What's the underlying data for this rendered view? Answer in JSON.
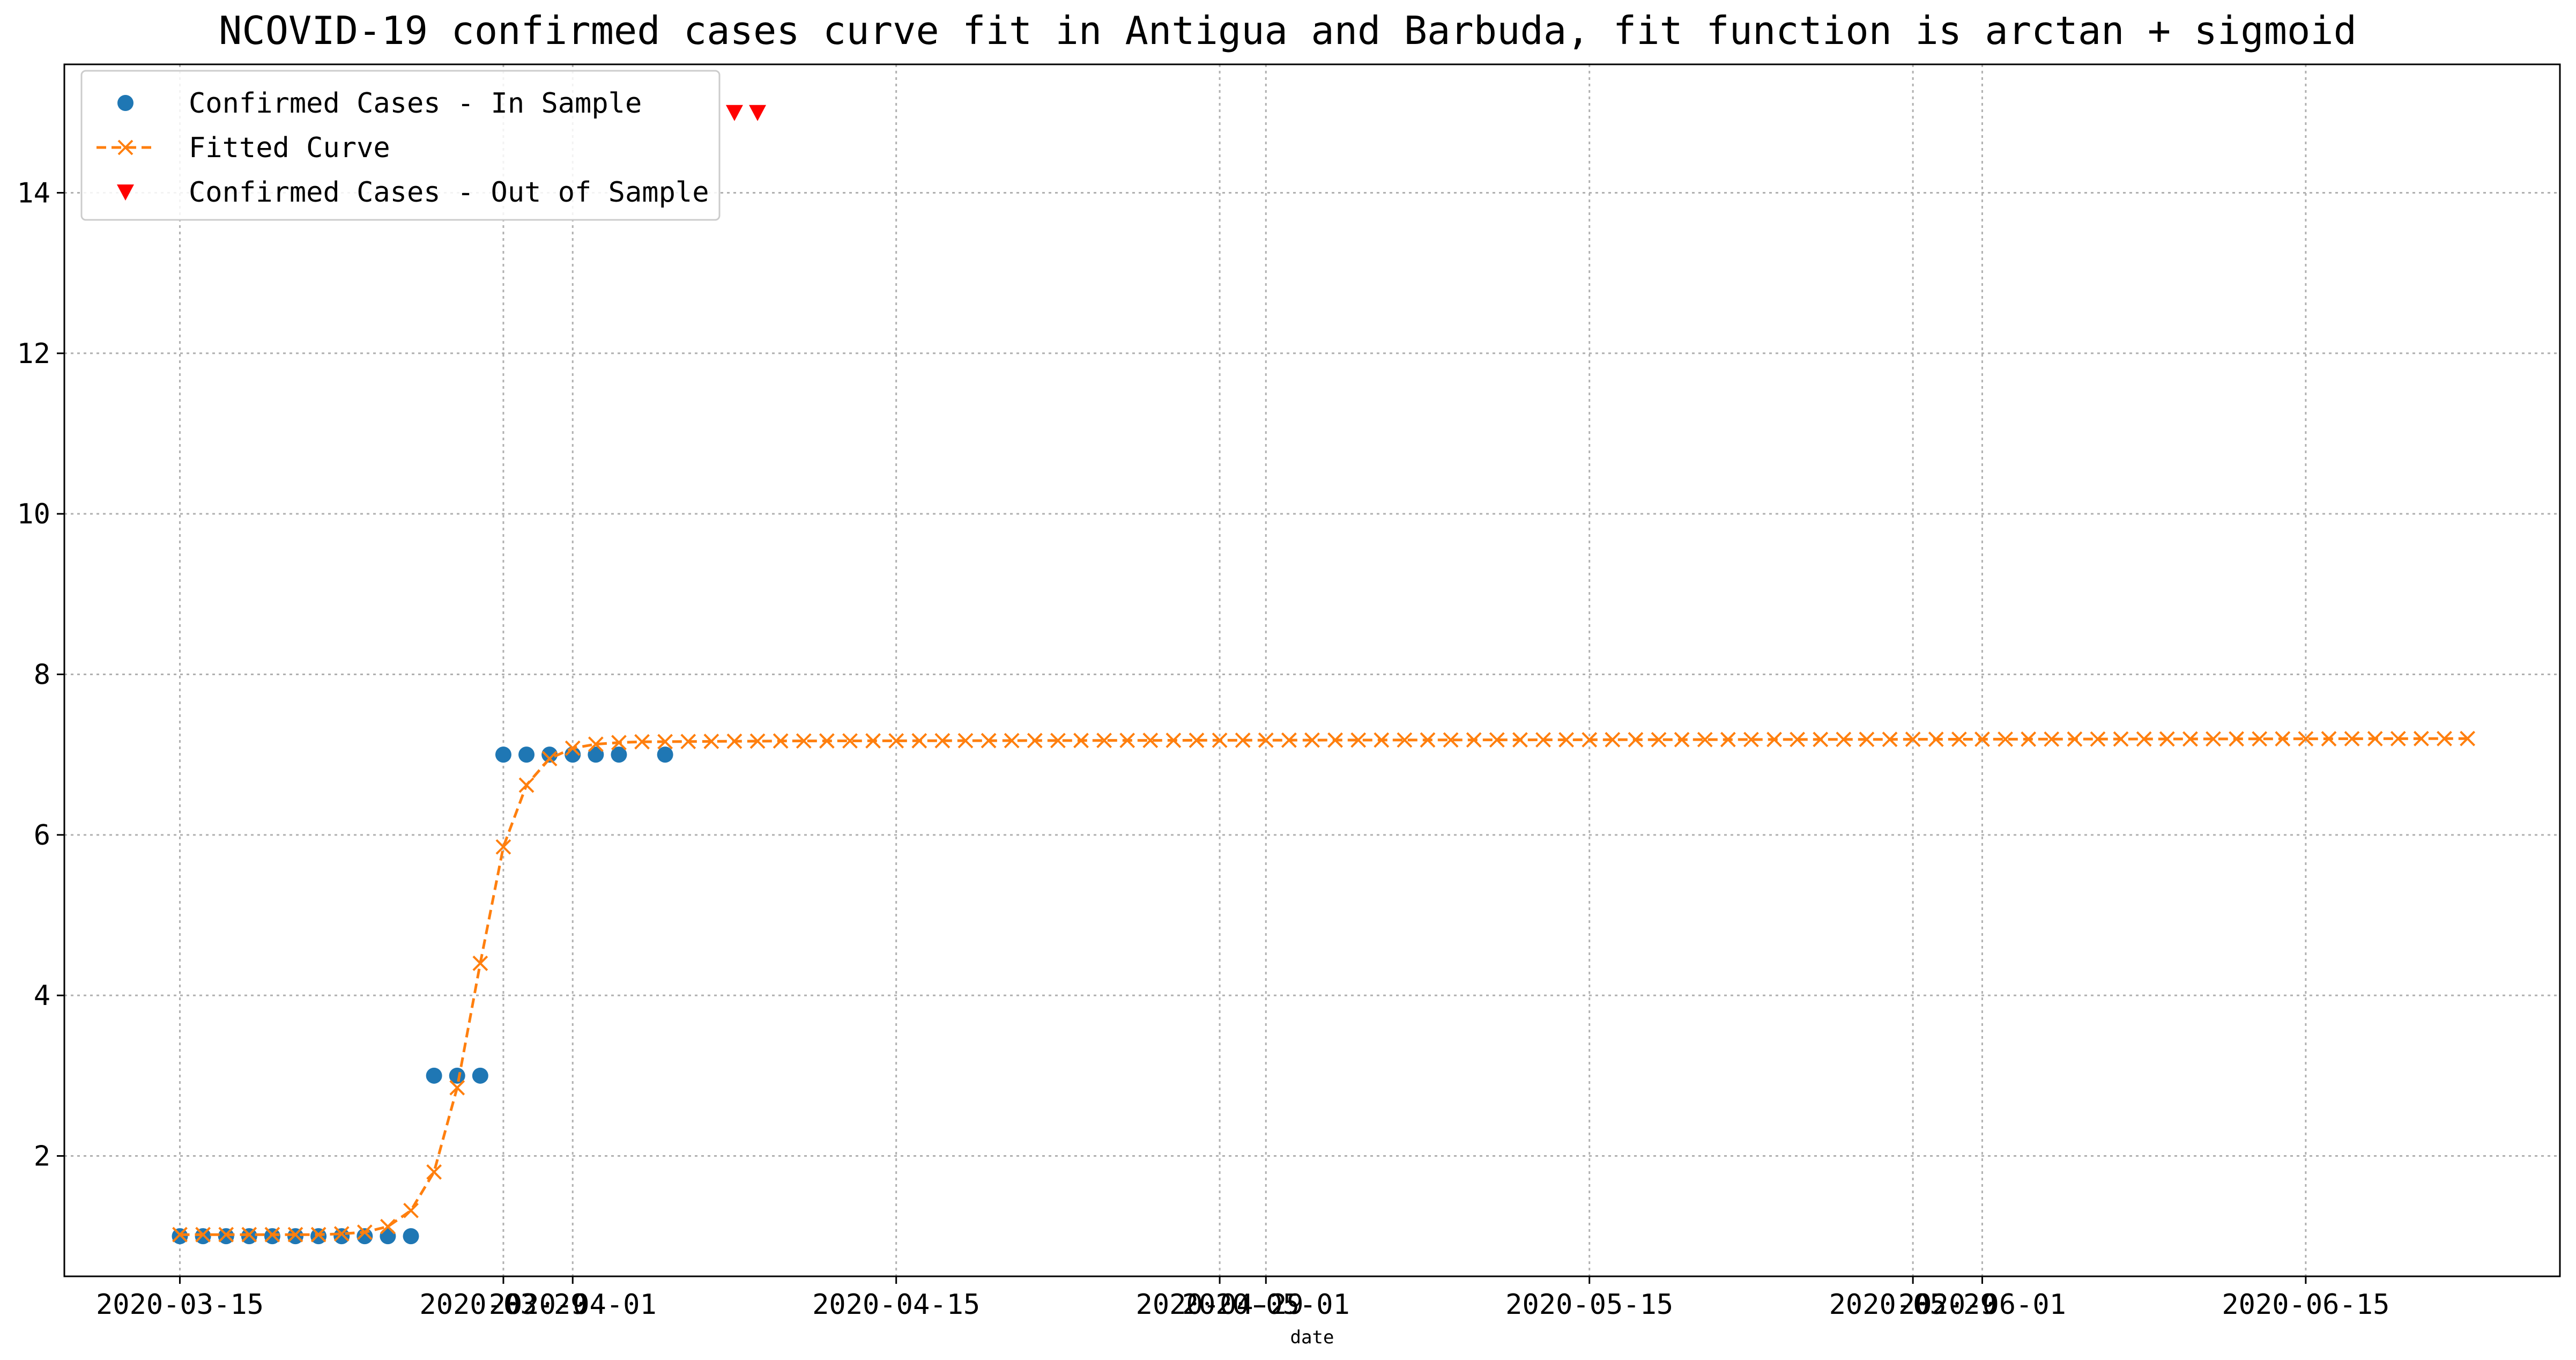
{
  "chart_data": {
    "type": "line",
    "title": "NCOVID-19 confirmed cases curve fit in Antigua and Barbuda, fit function is arctan + sigmoid",
    "xlabel": "date",
    "ylabel": "",
    "x_start_date": "2020-03-15",
    "x_range_dates": [
      "2020-03-10",
      "2020-06-26"
    ],
    "ylim": [
      0.5,
      15.6
    ],
    "grid": true,
    "legend_position": "top-left",
    "x_ticks": [
      {
        "date": "2020-03-15",
        "label": "2020-03-15"
      },
      {
        "date": "2020-03-29",
        "label": "2020-03-29"
      },
      {
        "date": "2020-04-01",
        "label": "2020-04-01"
      },
      {
        "date": "2020-04-15",
        "label": "2020-04-15"
      },
      {
        "date": "2020-04-29",
        "label": "2020-04-29"
      },
      {
        "date": "2020-05-01",
        "label": "2020-05-01"
      },
      {
        "date": "2020-05-15",
        "label": "2020-05-15"
      },
      {
        "date": "2020-05-29",
        "label": "2020-05-29"
      },
      {
        "date": "2020-06-01",
        "label": "2020-06-01"
      },
      {
        "date": "2020-06-15",
        "label": "2020-06-15"
      }
    ],
    "y_ticks": [
      2,
      4,
      6,
      8,
      10,
      12,
      14
    ],
    "series": [
      {
        "name": "Confirmed Cases - In Sample",
        "marker": "circle",
        "color": "#1f77b4",
        "points": [
          {
            "date": "2020-03-15",
            "y": 1
          },
          {
            "date": "2020-03-16",
            "y": 1
          },
          {
            "date": "2020-03-17",
            "y": 1
          },
          {
            "date": "2020-03-18",
            "y": 1
          },
          {
            "date": "2020-03-19",
            "y": 1
          },
          {
            "date": "2020-03-20",
            "y": 1
          },
          {
            "date": "2020-03-21",
            "y": 1
          },
          {
            "date": "2020-03-22",
            "y": 1
          },
          {
            "date": "2020-03-23",
            "y": 1
          },
          {
            "date": "2020-03-24",
            "y": 1
          },
          {
            "date": "2020-03-25",
            "y": 1
          },
          {
            "date": "2020-03-26",
            "y": 3
          },
          {
            "date": "2020-03-27",
            "y": 3
          },
          {
            "date": "2020-03-28",
            "y": 3
          },
          {
            "date": "2020-03-29",
            "y": 7
          },
          {
            "date": "2020-03-30",
            "y": 7
          },
          {
            "date": "2020-03-31",
            "y": 7
          },
          {
            "date": "2020-04-01",
            "y": 7
          },
          {
            "date": "2020-04-02",
            "y": 7
          },
          {
            "date": "2020-04-03",
            "y": 7
          },
          {
            "date": "2020-04-05",
            "y": 7
          }
        ]
      },
      {
        "name": "Fitted Curve",
        "marker": "x",
        "line_style": "dashed",
        "color": "#ff7f0e",
        "points": [
          {
            "date": "2020-03-15",
            "y": 1.02
          },
          {
            "date": "2020-03-16",
            "y": 1.02
          },
          {
            "date": "2020-03-17",
            "y": 1.02
          },
          {
            "date": "2020-03-18",
            "y": 1.02
          },
          {
            "date": "2020-03-19",
            "y": 1.02
          },
          {
            "date": "2020-03-20",
            "y": 1.02
          },
          {
            "date": "2020-03-21",
            "y": 1.02
          },
          {
            "date": "2020-03-22",
            "y": 1.03
          },
          {
            "date": "2020-03-23",
            "y": 1.05
          },
          {
            "date": "2020-03-24",
            "y": 1.12
          },
          {
            "date": "2020-03-25",
            "y": 1.32
          },
          {
            "date": "2020-03-26",
            "y": 1.8
          },
          {
            "date": "2020-03-27",
            "y": 2.85
          },
          {
            "date": "2020-03-28",
            "y": 4.4
          },
          {
            "date": "2020-03-29",
            "y": 5.85
          },
          {
            "date": "2020-03-30",
            "y": 6.62
          },
          {
            "date": "2020-03-31",
            "y": 6.95
          },
          {
            "date": "2020-04-01",
            "y": 7.08
          },
          {
            "date": "2020-04-02",
            "y": 7.13
          },
          {
            "date": "2020-04-03",
            "y": 7.15
          },
          {
            "date": "2020-04-04",
            "y": 7.16
          },
          {
            "date": "2020-04-10",
            "y": 7.17
          },
          {
            "date": "2020-05-01",
            "y": 7.18
          },
          {
            "date": "2020-06-22",
            "y": 7.2
          }
        ]
      },
      {
        "name": "Confirmed Cases - Out of Sample",
        "marker": "triangle-down",
        "color": "#ff0000",
        "points": [
          {
            "date": "2020-04-08",
            "y": 15
          },
          {
            "date": "2020-04-09",
            "y": 15
          }
        ]
      }
    ]
  }
}
